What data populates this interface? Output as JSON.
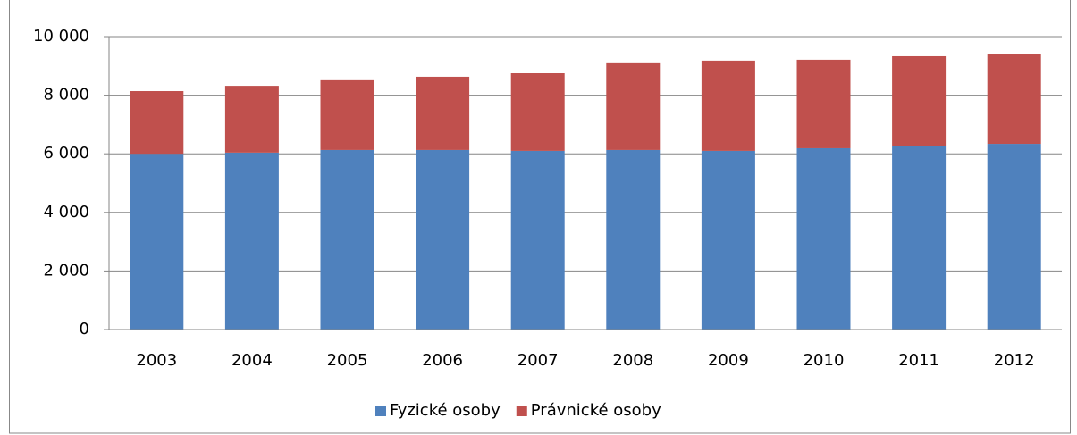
{
  "chart_data": {
    "type": "stacked_bar",
    "categories": [
      "2003",
      "2004",
      "2005",
      "2006",
      "2007",
      "2008",
      "2009",
      "2010",
      "2011",
      "2012"
    ],
    "series": [
      {
        "name": "Fyzické osoby",
        "color": "#4f81bd",
        "values": [
          6000,
          6040,
          6130,
          6130,
          6100,
          6130,
          6100,
          6190,
          6250,
          6340
        ]
      },
      {
        "name": "Právnické osoby",
        "color": "#c0504d",
        "values": [
          2140,
          2280,
          2380,
          2500,
          2650,
          2990,
          3080,
          3020,
          3080,
          3050
        ]
      }
    ],
    "ylim": [
      0,
      10000
    ],
    "yticks": [
      0,
      {
        "value": 2000,
        "label": "2 000"
      },
      {
        "value": 4000,
        "label": "4 000"
      },
      {
        "value": 6000,
        "label": "6 000"
      },
      {
        "value": 8000,
        "label": "8 000"
      },
      {
        "value": 10000,
        "label": "10 000"
      }
    ],
    "grid": true,
    "legend": "bottom"
  }
}
